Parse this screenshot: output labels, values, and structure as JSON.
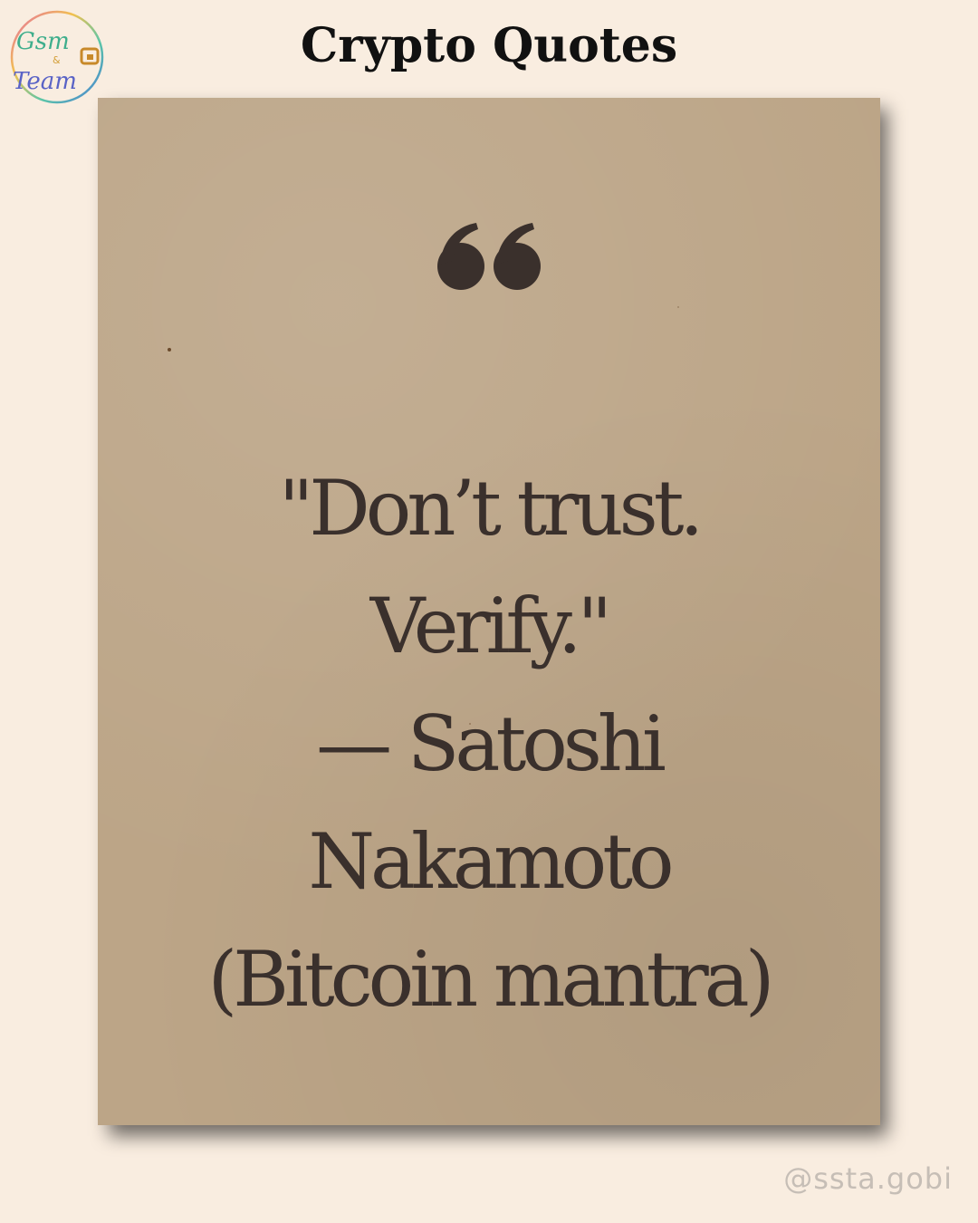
{
  "header": {
    "title": "Crypto Quotes"
  },
  "logo": {
    "text_line1": "Gsm",
    "text_amp": "&",
    "text_line2": "Team",
    "icon": "team-logo-icon"
  },
  "card": {
    "quote_icon": "quote-mark-icon",
    "quote_lines": [
      "\"Don’t trust.",
      "Verify.\"",
      "— Satoshi",
      "Nakamoto",
      "(Bitcoin mantra)"
    ]
  },
  "footer": {
    "handle": "@ssta.gobi"
  },
  "colors": {
    "background": "#f9ede0",
    "card": "#bca587",
    "text": "#3a302c",
    "handle": "#c6beb6"
  }
}
